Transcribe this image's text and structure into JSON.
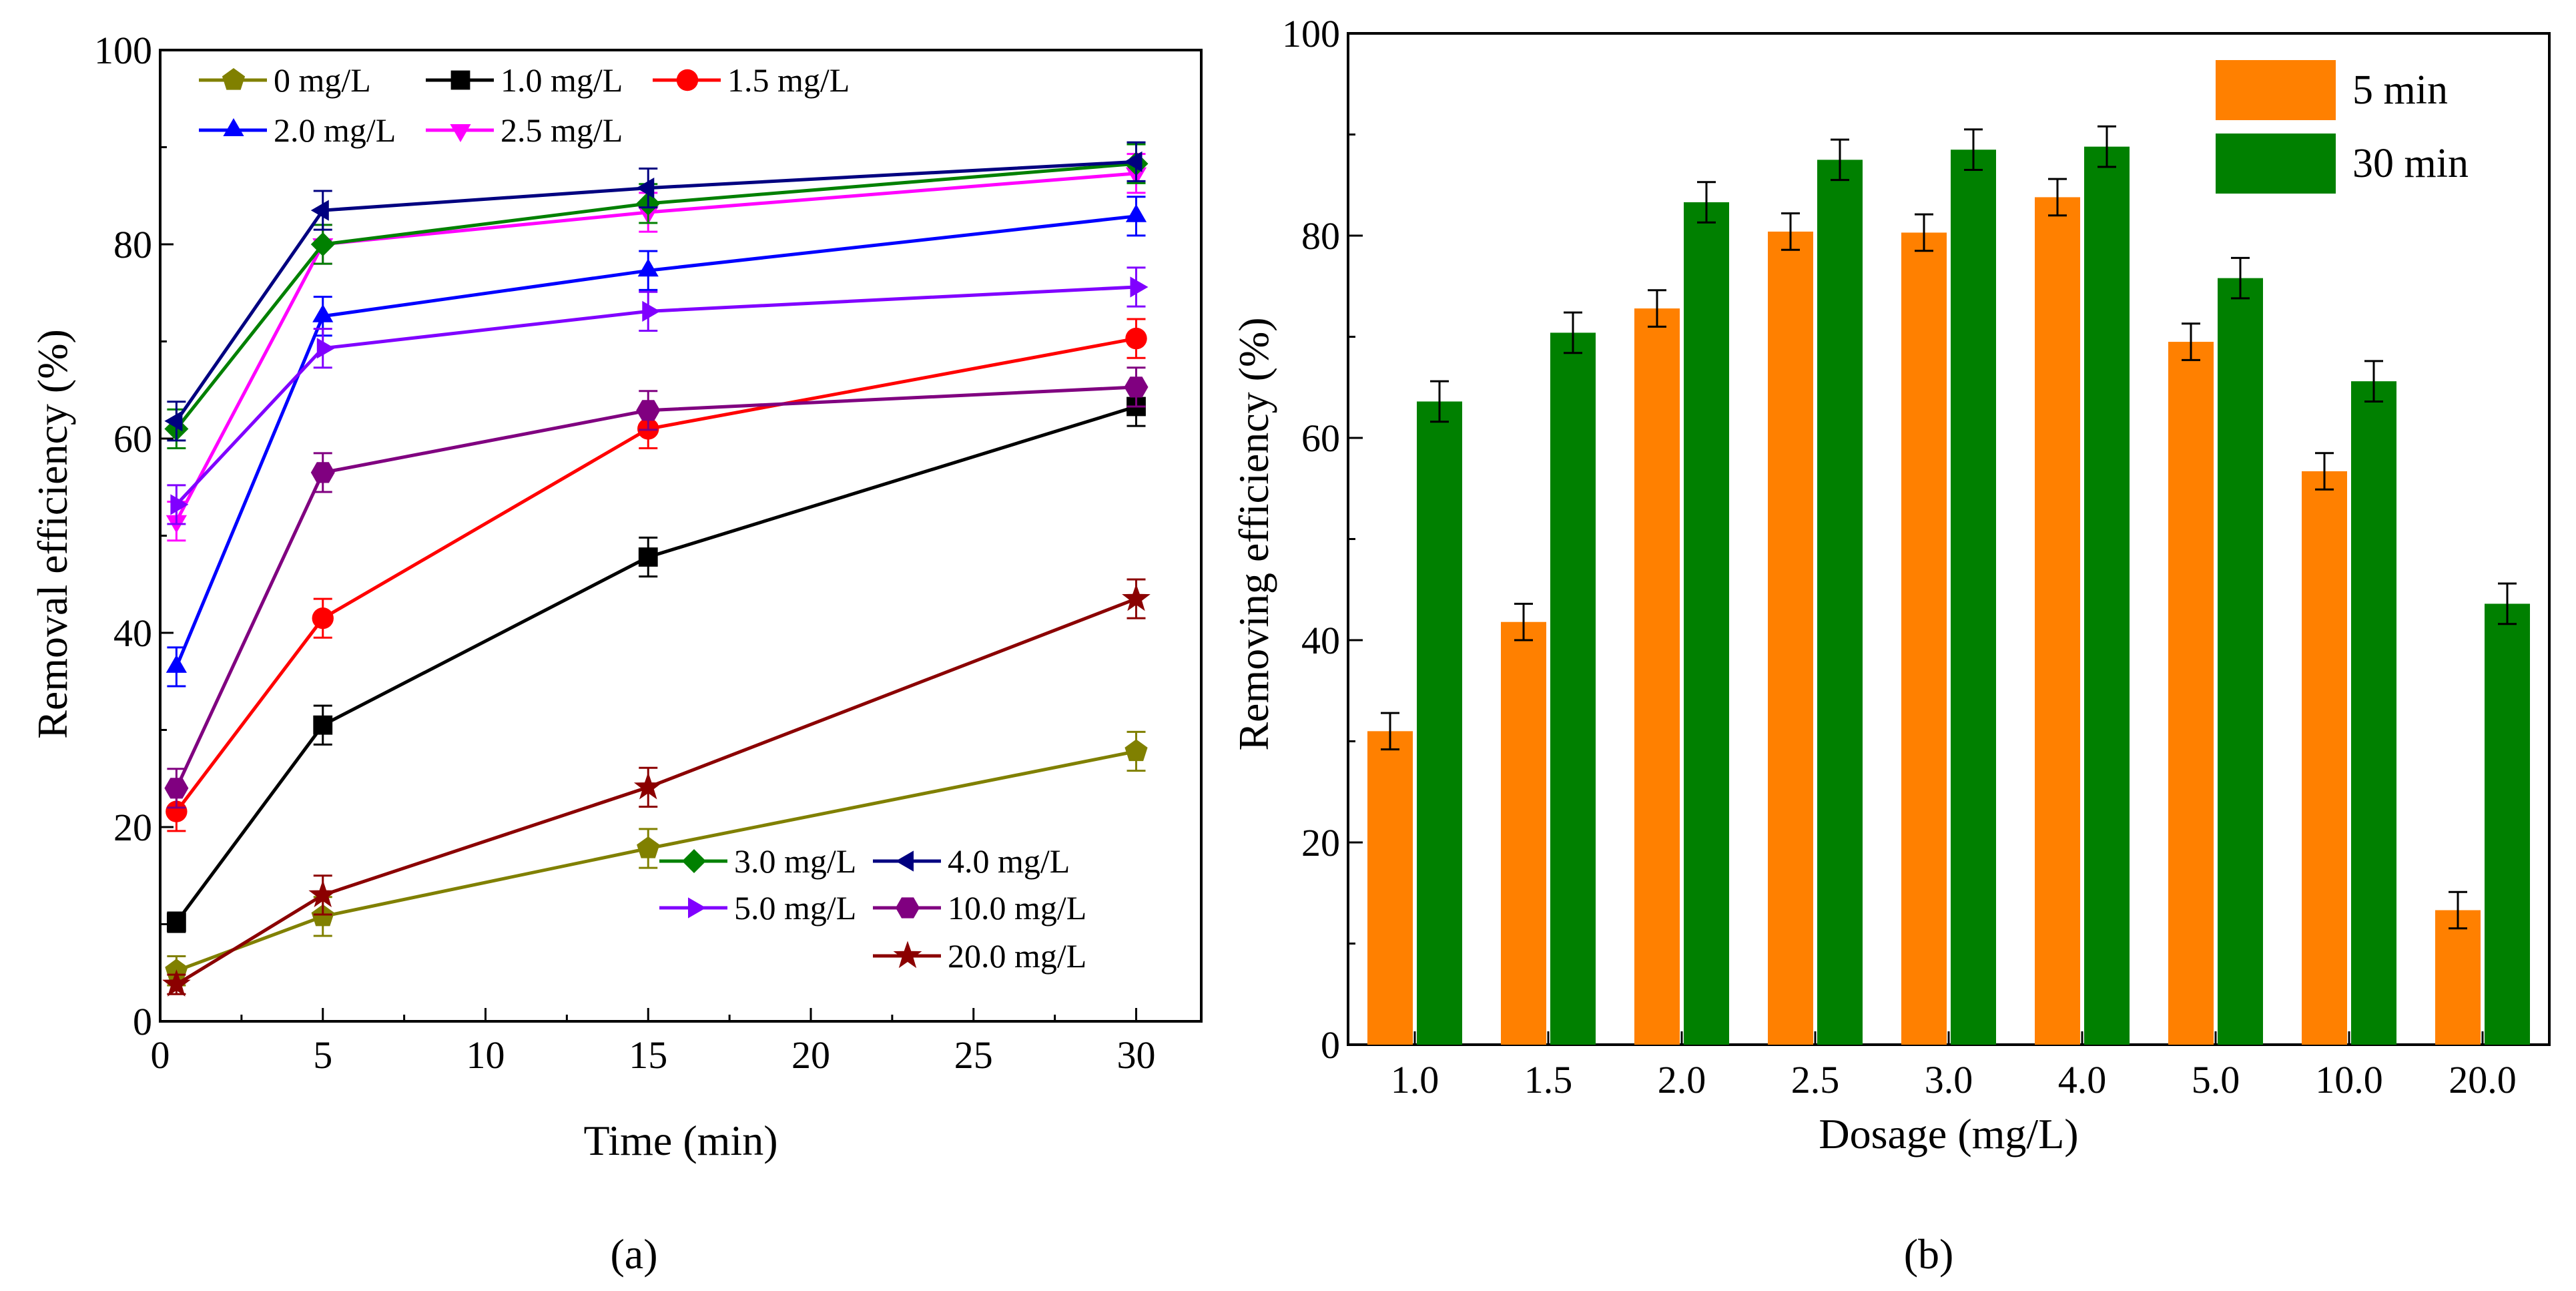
{
  "chart_data": [
    {
      "type": "line",
      "panel_label": "(a)",
      "xlabel": "Time (min)",
      "ylabel": "Removal efficiency (%)",
      "xlim": [
        0,
        32
      ],
      "ylim": [
        0,
        100
      ],
      "xticks": [
        0,
        5,
        10,
        15,
        20,
        25,
        30
      ],
      "yticks": [
        0,
        20,
        40,
        60,
        80,
        100
      ],
      "x": [
        0.5,
        5,
        15,
        30
      ],
      "series": [
        {
          "name": "0 mg/L",
          "color": "#808000",
          "marker": "pentagon",
          "values": [
            5.2,
            10.8,
            17.8,
            27.8
          ],
          "err": [
            1.5,
            2,
            2,
            2
          ]
        },
        {
          "name": "1.0 mg/L",
          "color": "#000000",
          "marker": "square",
          "values": [
            10.2,
            30.5,
            47.8,
            63.3
          ],
          "err": [
            1,
            2,
            2,
            2
          ]
        },
        {
          "name": "1.5 mg/L",
          "color": "#ff0000",
          "marker": "circle",
          "values": [
            21.6,
            41.5,
            61.0,
            70.3
          ],
          "err": [
            2,
            2,
            2,
            2
          ]
        },
        {
          "name": "2.0 mg/L",
          "color": "#0000ff",
          "marker": "triangle-up",
          "values": [
            36.5,
            72.6,
            77.3,
            82.9
          ],
          "err": [
            2,
            2,
            2,
            2
          ]
        },
        {
          "name": "2.5 mg/L",
          "color": "#ff00ff",
          "marker": "triangle-down",
          "values": [
            51.5,
            80.0,
            83.3,
            87.3
          ],
          "err": [
            2,
            2,
            2,
            2
          ]
        },
        {
          "name": "3.0 mg/L",
          "color": "#008000",
          "marker": "diamond",
          "values": [
            61.0,
            80.0,
            84.2,
            88.3
          ],
          "err": [
            2,
            2,
            2,
            2
          ]
        },
        {
          "name": "4.0 mg/L",
          "color": "#000080",
          "marker": "triangle-left",
          "values": [
            61.8,
            83.5,
            85.8,
            88.5
          ],
          "err": [
            2,
            2,
            2,
            2
          ]
        },
        {
          "name": "5.0 mg/L",
          "color": "#8000ff",
          "marker": "triangle-right",
          "values": [
            53.2,
            69.3,
            73.1,
            75.6
          ],
          "err": [
            2,
            2,
            2,
            2
          ]
        },
        {
          "name": "10.0 mg/L",
          "color": "#800080",
          "marker": "hexagon",
          "values": [
            24.0,
            56.5,
            62.9,
            65.3
          ],
          "err": [
            2,
            2,
            2,
            2
          ]
        },
        {
          "name": "20.0 mg/L",
          "color": "#8b0000",
          "marker": "star",
          "values": [
            3.8,
            13.0,
            24.1,
            43.5
          ],
          "err": [
            1,
            2,
            2,
            2
          ]
        }
      ]
    },
    {
      "type": "bar",
      "panel_label": "(b)",
      "xlabel": "Dosage (mg/L)",
      "ylabel": "Removing efficiency (%)",
      "ylim": [
        0,
        100
      ],
      "yticks": [
        0,
        20,
        40,
        60,
        80,
        100
      ],
      "categories": [
        "1.0",
        "1.5",
        "2.0",
        "2.5",
        "3.0",
        "4.0",
        "5.0",
        "10.0",
        "20.0"
      ],
      "series": [
        {
          "name": "5 min",
          "color": "#ff8000",
          "values": [
            31.0,
            41.8,
            72.8,
            80.4,
            80.3,
            83.8,
            69.5,
            56.7,
            13.3
          ],
          "err": [
            1.8,
            1.8,
            1.8,
            1.8,
            1.8,
            1.8,
            1.8,
            1.8,
            1.8
          ]
        },
        {
          "name": "30 min",
          "color": "#008000",
          "values": [
            63.6,
            70.4,
            83.3,
            87.5,
            88.5,
            88.8,
            75.8,
            65.6,
            43.6
          ],
          "err": [
            2,
            2,
            2,
            2,
            2,
            2,
            2,
            2,
            2
          ]
        }
      ]
    }
  ]
}
